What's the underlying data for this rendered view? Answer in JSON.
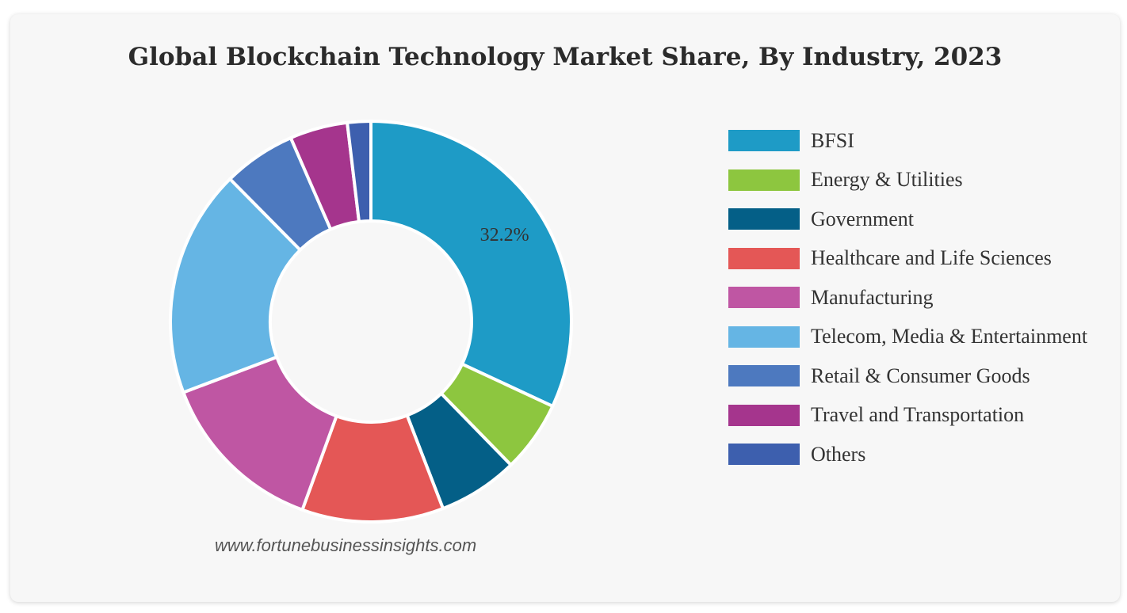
{
  "chart_data": {
    "type": "pie",
    "variant": "donut",
    "title": "Global Blockchain Technology Market Share, By Industry, 2023",
    "categories": [
      "BFSI",
      "Energy & Utilities",
      "Government",
      "Healthcare and Life Sciences",
      "Manufacturing",
      "Telecom, Media & Entertainment",
      "Retail & Consumer Goods",
      "Travel and Transportation",
      "Others"
    ],
    "values": [
      32.2,
      5.8,
      6.5,
      11.5,
      13.8,
      18.5,
      5.9,
      4.7,
      1.9
    ],
    "colors": [
      "#1e9bc6",
      "#8dc63f",
      "#045f87",
      "#e45756",
      "#bf56a3",
      "#65b5e4",
      "#4d79bf",
      "#a5358d",
      "#3d5fae"
    ],
    "data_labels": [
      {
        "index": 0,
        "text": "32.2%"
      }
    ],
    "legend_position": "right"
  },
  "source": "www.fortunebusinessinsights.com"
}
